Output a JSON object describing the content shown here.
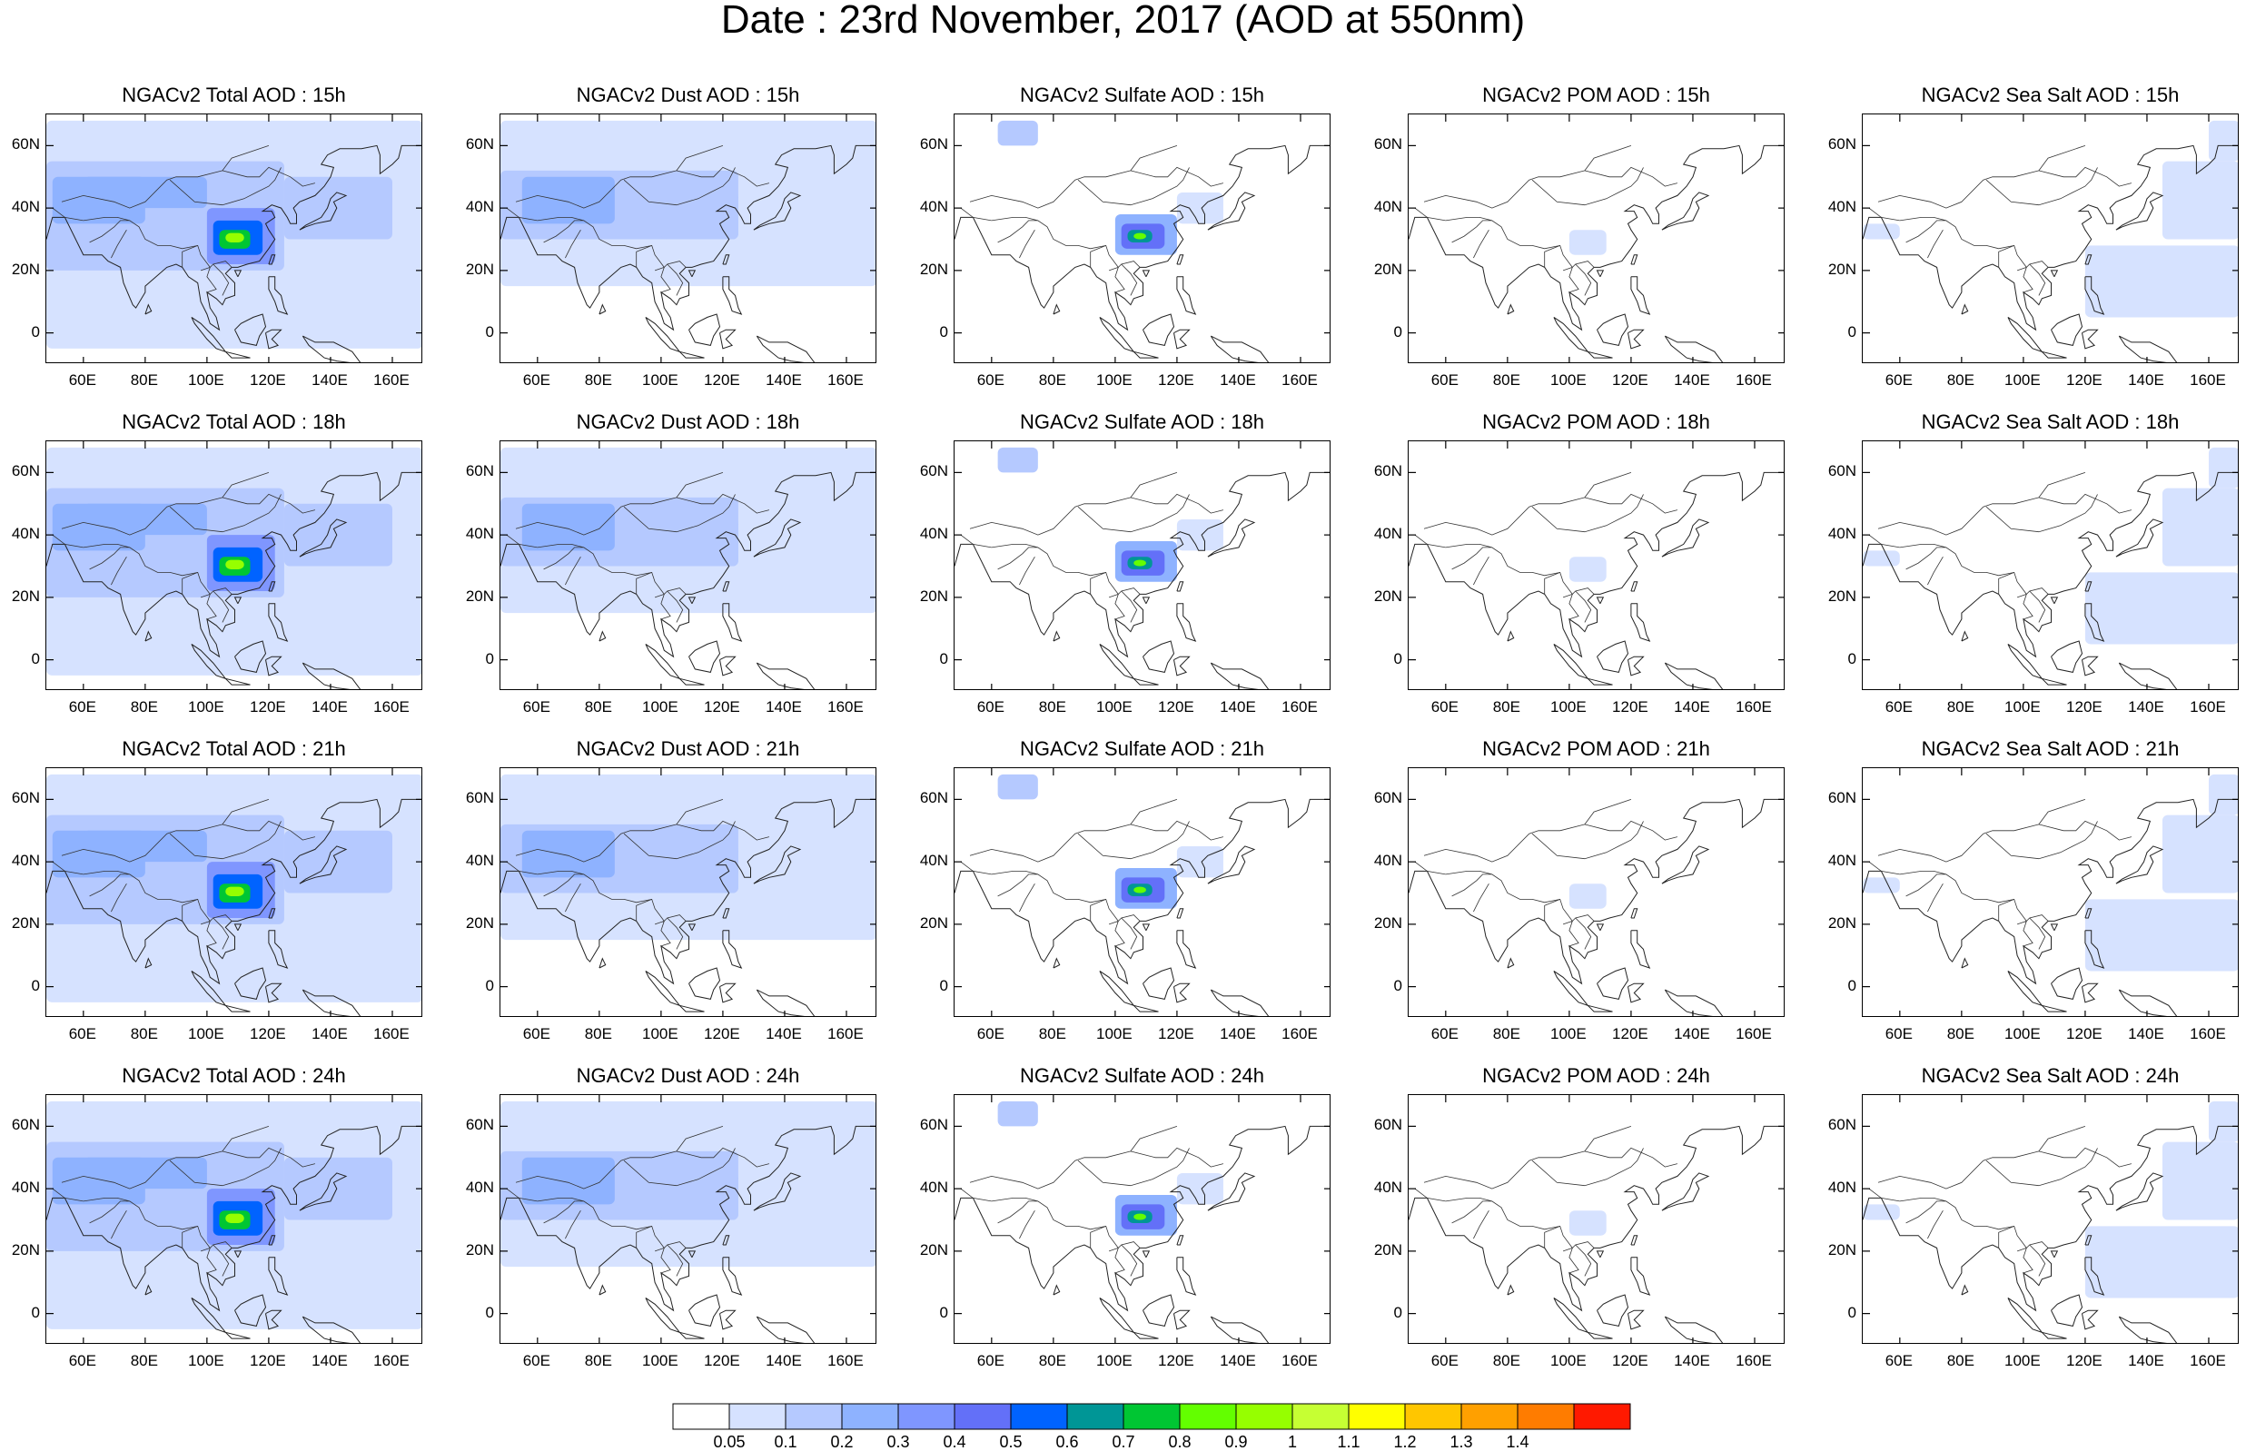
{
  "title": "Date : 23rd November, 2017 (AOD at 550nm)",
  "columns": [
    "total",
    "dust",
    "sulfate",
    "pom",
    "seasalt"
  ],
  "rows": [
    "15h",
    "18h",
    "21h",
    "24h"
  ],
  "panel_titles": [
    [
      "NGACv2 Total AOD : 15h",
      "NGACv2 Dust AOD : 15h",
      "NGACv2 Sulfate AOD : 15h",
      "NGACv2 POM AOD : 15h",
      "NGACv2 Sea Salt AOD : 15h"
    ],
    [
      "NGACv2 Total AOD : 18h",
      "NGACv2 Dust AOD : 18h",
      "NGACv2 Sulfate AOD : 18h",
      "NGACv2 POM AOD : 18h",
      "NGACv2 Sea Salt AOD : 18h"
    ],
    [
      "NGACv2 Total AOD : 21h",
      "NGACv2 Dust AOD : 21h",
      "NGACv2 Sulfate AOD : 21h",
      "NGACv2 POM AOD : 21h",
      "NGACv2 Sea Salt AOD : 21h"
    ],
    [
      "NGACv2 Total AOD : 24h",
      "NGACv2 Dust AOD : 24h",
      "NGACv2 Sulfate AOD : 24h",
      "NGACv2 POM AOD : 24h",
      "NGACv2 Sea Salt  AOD : 24h"
    ]
  ],
  "lat_ticks": [
    "60N",
    "40N",
    "20N",
    "0"
  ],
  "lat_values": [
    60,
    40,
    20,
    0
  ],
  "lon_ticks": [
    "60E",
    "80E",
    "100E",
    "120E",
    "140E",
    "160E"
  ],
  "lon_values": [
    60,
    80,
    100,
    120,
    140,
    160
  ],
  "lon_range": [
    48,
    170
  ],
  "lat_range": [
    -10,
    70
  ],
  "colorbar": {
    "levels": [
      "0.05",
      "0.1",
      "0.2",
      "0.3",
      "0.4",
      "0.5",
      "0.6",
      "0.7",
      "0.8",
      "0.9",
      "1",
      "1.1",
      "1.2",
      "1.3",
      "1.4"
    ],
    "colors": [
      "#ffffff",
      "#d6e2ff",
      "#b5c9ff",
      "#8eb2ff",
      "#7f96ff",
      "#6370f8",
      "#0063ff",
      "#009696",
      "#00c633",
      "#63ff00",
      "#96ff00",
      "#c6ff33",
      "#ffff00",
      "#ffc600",
      "#ffa000",
      "#ff7c00",
      "#ff1900"
    ]
  }
}
